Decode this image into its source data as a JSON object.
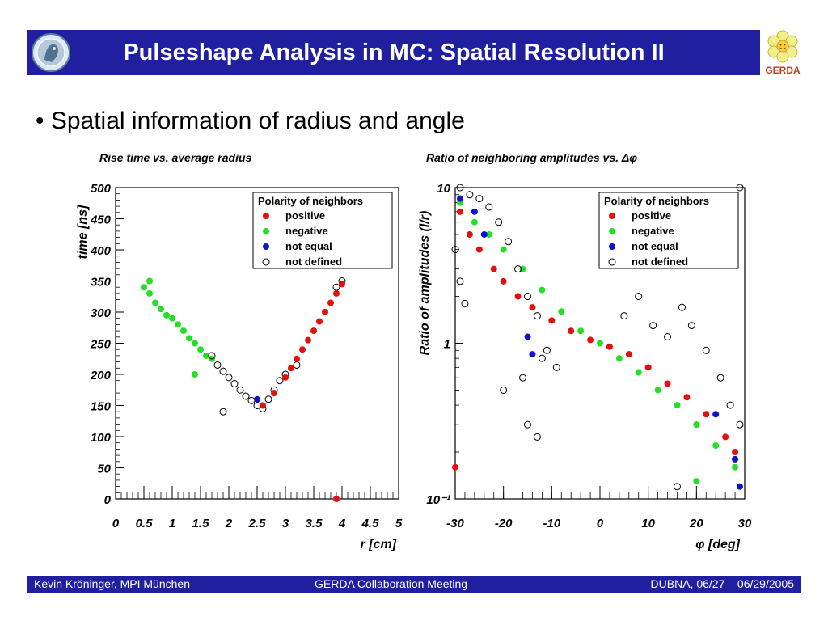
{
  "slide": {
    "title": "Pulseshape Analysis in MC: Spatial Resolution II",
    "bullet": "• Spatial information of radius and angle",
    "logo_right_text": "GERDA",
    "footer": {
      "left": "Kevin Kröninger, MPI München",
      "center": "GERDA Collaboration Meeting",
      "right": "DUBNA, 06/27 – 06/29/2005"
    },
    "colors": {
      "title_bar": "#1f1fa0",
      "positive": "#e41010",
      "negative": "#22e022",
      "not_equal": "#1010d0",
      "not_defined": "#000000"
    }
  },
  "chart_data": [
    {
      "type": "scatter",
      "title": "Rise time vs. average radius",
      "xlabel": "r [cm]",
      "ylabel": "time [ns]",
      "xlim": [
        0,
        5
      ],
      "ylim": [
        0,
        500
      ],
      "x_ticks": [
        "0",
        "0.5",
        "1",
        "1.5",
        "2",
        "2.5",
        "3",
        "3.5",
        "4",
        "4.5",
        "5"
      ],
      "y_ticks": [
        "0",
        "50",
        "100",
        "150",
        "200",
        "250",
        "300",
        "350",
        "400",
        "450",
        "500"
      ],
      "legend": {
        "title": "Polarity of neighbors",
        "position": "top-right",
        "entries": [
          "positive",
          "negative",
          "not equal",
          "not defined"
        ]
      },
      "series": [
        {
          "name": "negative",
          "points": [
            [
              0.5,
              340
            ],
            [
              0.6,
              330
            ],
            [
              0.7,
              315
            ],
            [
              0.8,
              305
            ],
            [
              0.9,
              295
            ],
            [
              1.0,
              290
            ],
            [
              1.1,
              280
            ],
            [
              1.2,
              270
            ],
            [
              1.3,
              258
            ],
            [
              1.4,
              250
            ],
            [
              1.5,
              240
            ],
            [
              1.6,
              230
            ],
            [
              1.7,
              225
            ],
            [
              1.4,
              200
            ],
            [
              0.6,
              350
            ]
          ]
        },
        {
          "name": "not defined",
          "points": [
            [
              1.7,
              230
            ],
            [
              1.8,
              215
            ],
            [
              1.9,
              205
            ],
            [
              2.0,
              195
            ],
            [
              2.1,
              185
            ],
            [
              2.2,
              175
            ],
            [
              2.3,
              165
            ],
            [
              2.4,
              158
            ],
            [
              2.5,
              150
            ],
            [
              2.6,
              145
            ],
            [
              2.7,
              160
            ],
            [
              2.8,
              175
            ],
            [
              2.9,
              190
            ],
            [
              3.0,
              200
            ],
            [
              3.2,
              215
            ],
            [
              1.9,
              140
            ],
            [
              3.9,
              340
            ],
            [
              4.0,
              350
            ]
          ]
        },
        {
          "name": "positive",
          "points": [
            [
              2.6,
              150
            ],
            [
              2.8,
              170
            ],
            [
              3.0,
              195
            ],
            [
              3.1,
              210
            ],
            [
              3.2,
              225
            ],
            [
              3.3,
              240
            ],
            [
              3.4,
              255
            ],
            [
              3.5,
              270
            ],
            [
              3.6,
              285
            ],
            [
              3.7,
              300
            ],
            [
              3.8,
              315
            ],
            [
              3.9,
              330
            ],
            [
              4.0,
              345
            ],
            [
              3.9,
              0
            ]
          ]
        },
        {
          "name": "not equal",
          "points": [
            [
              2.5,
              160
            ]
          ]
        }
      ]
    },
    {
      "type": "scatter",
      "title": "Ratio of neighboring amplitudes vs. Δφ",
      "xlabel": "φ [deg]",
      "ylabel": "Ratio of amplitudes (l/r)",
      "xlim": [
        -30,
        30
      ],
      "ylim": [
        0.1,
        10
      ],
      "log_y": true,
      "x_ticks": [
        "-30",
        "-20",
        "-10",
        "0",
        "10",
        "20",
        "30"
      ],
      "y_ticks": [
        "10⁻¹",
        "1",
        "10"
      ],
      "legend": {
        "title": "Polarity of neighbors",
        "position": "top-right",
        "entries": [
          "positive",
          "negative",
          "not equal",
          "not defined"
        ]
      },
      "series": [
        {
          "name": "positive",
          "points": [
            [
              -29,
              7
            ],
            [
              -27,
              5
            ],
            [
              -25,
              4
            ],
            [
              -22,
              3
            ],
            [
              -20,
              2.5
            ],
            [
              -17,
              2
            ],
            [
              -14,
              1.7
            ],
            [
              -10,
              1.4
            ],
            [
              -6,
              1.2
            ],
            [
              -2,
              1.05
            ],
            [
              2,
              0.95
            ],
            [
              6,
              0.85
            ],
            [
              10,
              0.7
            ],
            [
              14,
              0.55
            ],
            [
              18,
              0.45
            ],
            [
              22,
              0.35
            ],
            [
              26,
              0.25
            ],
            [
              28,
              0.2
            ],
            [
              -30,
              0.16
            ]
          ]
        },
        {
          "name": "negative",
          "points": [
            [
              -29,
              8
            ],
            [
              -26,
              6
            ],
            [
              -23,
              5
            ],
            [
              -20,
              4
            ],
            [
              -16,
              3
            ],
            [
              -12,
              2.2
            ],
            [
              -8,
              1.6
            ],
            [
              -4,
              1.2
            ],
            [
              0,
              1.0
            ],
            [
              4,
              0.8
            ],
            [
              8,
              0.65
            ],
            [
              12,
              0.5
            ],
            [
              16,
              0.4
            ],
            [
              20,
              0.3
            ],
            [
              24,
              0.22
            ],
            [
              28,
              0.16
            ],
            [
              20,
              0.13
            ]
          ]
        },
        {
          "name": "not equal",
          "points": [
            [
              -29,
              8.5
            ],
            [
              -26,
              7
            ],
            [
              -24,
              5
            ],
            [
              -14,
              0.85
            ],
            [
              -15,
              1.1
            ],
            [
              24,
              0.35
            ],
            [
              28,
              0.18
            ],
            [
              29,
              0.12
            ]
          ]
        },
        {
          "name": "not defined",
          "points": [
            [
              -29,
              10
            ],
            [
              -27,
              9
            ],
            [
              -25,
              8.5
            ],
            [
              -23,
              7.5
            ],
            [
              -21,
              6
            ],
            [
              -19,
              4.5
            ],
            [
              -17,
              3
            ],
            [
              -15,
              2
            ],
            [
              -13,
              1.5
            ],
            [
              -11,
              0.9
            ],
            [
              -9,
              0.7
            ],
            [
              -20,
              0.5
            ],
            [
              -16,
              0.6
            ],
            [
              -12,
              0.8
            ],
            [
              5,
              1.5
            ],
            [
              8,
              2.0
            ],
            [
              11,
              1.3
            ],
            [
              14,
              1.1
            ],
            [
              17,
              1.7
            ],
            [
              19,
              1.3
            ],
            [
              22,
              0.9
            ],
            [
              25,
              0.6
            ],
            [
              27,
              0.4
            ],
            [
              29,
              0.3
            ],
            [
              -15,
              0.3
            ],
            [
              -13,
              0.25
            ],
            [
              16,
              0.12
            ],
            [
              29,
              10
            ],
            [
              -30,
              4
            ],
            [
              -29,
              2.5
            ],
            [
              -28,
              1.8
            ]
          ]
        }
      ]
    }
  ]
}
